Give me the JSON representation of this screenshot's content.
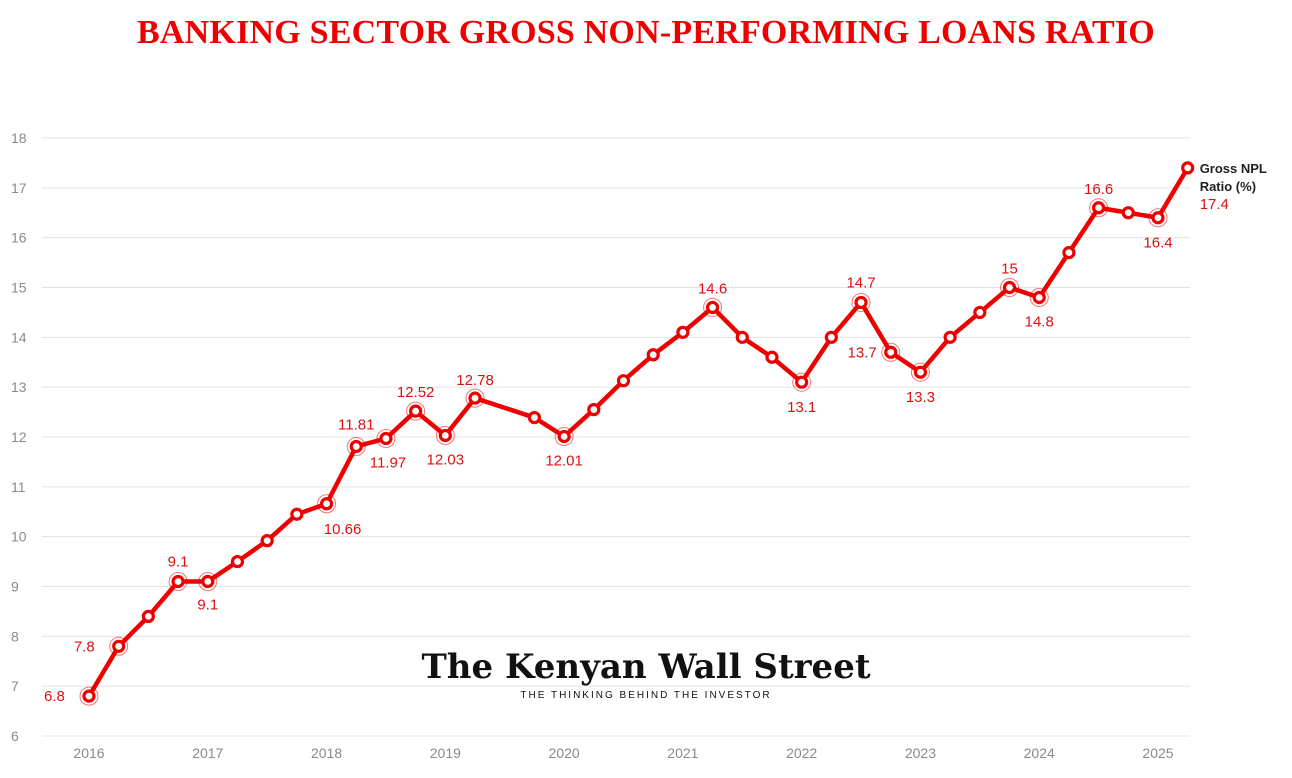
{
  "chart_data": {
    "type": "line",
    "title": "BANKING SECTOR GROSS NON-PERFORMING LOANS RATIO",
    "xlabel": "",
    "ylabel": "",
    "ylim": [
      6,
      18
    ],
    "yticks": [
      6,
      7,
      8,
      9,
      10,
      11,
      12,
      13,
      14,
      15,
      16,
      17,
      18
    ],
    "xlim": [
      2015.83,
      2025.33
    ],
    "xticks": [
      "2016",
      "2017",
      "2018",
      "2019",
      "2020",
      "2021",
      "2022",
      "2023",
      "2024",
      "2025"
    ],
    "grid": true,
    "legend_position": "right-end-of-line",
    "series": [
      {
        "name": "Gross NPL Ratio (%)",
        "color": "#ee0000",
        "points": [
          {
            "x": 2016.0,
            "y": 6.8,
            "label": "6.8"
          },
          {
            "x": 2016.25,
            "y": 7.8,
            "label": "7.8"
          },
          {
            "x": 2016.5,
            "y": 8.4
          },
          {
            "x": 2016.75,
            "y": 9.1,
            "label": "9.1"
          },
          {
            "x": 2017.0,
            "y": 9.1,
            "label": "9.1"
          },
          {
            "x": 2017.25,
            "y": 9.5
          },
          {
            "x": 2017.5,
            "y": 9.92
          },
          {
            "x": 2017.75,
            "y": 10.45
          },
          {
            "x": 2018.0,
            "y": 10.66,
            "label": "10.66"
          },
          {
            "x": 2018.25,
            "y": 11.81,
            "label": "11.81"
          },
          {
            "x": 2018.5,
            "y": 11.97,
            "label": "11.97"
          },
          {
            "x": 2018.75,
            "y": 12.52,
            "label": "12.52"
          },
          {
            "x": 2019.0,
            "y": 12.03,
            "label": "12.03"
          },
          {
            "x": 2019.25,
            "y": 12.78,
            "label": "12.78"
          },
          {
            "x": 2019.75,
            "y": 12.39
          },
          {
            "x": 2020.0,
            "y": 12.01,
            "label": "12.01"
          },
          {
            "x": 2020.25,
            "y": 12.55
          },
          {
            "x": 2020.5,
            "y": 13.13
          },
          {
            "x": 2020.75,
            "y": 13.65
          },
          {
            "x": 2021.0,
            "y": 14.1
          },
          {
            "x": 2021.25,
            "y": 14.6,
            "label": "14.6"
          },
          {
            "x": 2021.5,
            "y": 14.0
          },
          {
            "x": 2021.75,
            "y": 13.6
          },
          {
            "x": 2022.0,
            "y": 13.1,
            "label": "13.1"
          },
          {
            "x": 2022.25,
            "y": 14.0
          },
          {
            "x": 2022.5,
            "y": 14.7,
            "label": "14.7"
          },
          {
            "x": 2022.75,
            "y": 13.7,
            "label": "13.7"
          },
          {
            "x": 2023.0,
            "y": 13.3,
            "label": "13.3"
          },
          {
            "x": 2023.25,
            "y": 14.0
          },
          {
            "x": 2023.5,
            "y": 14.5
          },
          {
            "x": 2023.75,
            "y": 15.0,
            "label": "15"
          },
          {
            "x": 2024.0,
            "y": 14.8,
            "label": "14.8"
          },
          {
            "x": 2024.25,
            "y": 15.7
          },
          {
            "x": 2024.5,
            "y": 16.6,
            "label": "16.6"
          },
          {
            "x": 2024.75,
            "y": 16.5
          },
          {
            "x": 2025.0,
            "y": 16.4,
            "label": "16.4"
          },
          {
            "x": 2025.25,
            "y": 17.4,
            "label": "17.4"
          }
        ]
      }
    ]
  },
  "colors": {
    "title": "#ee0000",
    "line": "#ee0000",
    "grid": "#e3e3e3",
    "tick": "#8a8a8a",
    "label": "#dd1111"
  },
  "watermark": {
    "name": "The Kenyan Wall Street",
    "tagline": "THE THINKING BEHIND THE INVESTOR"
  }
}
